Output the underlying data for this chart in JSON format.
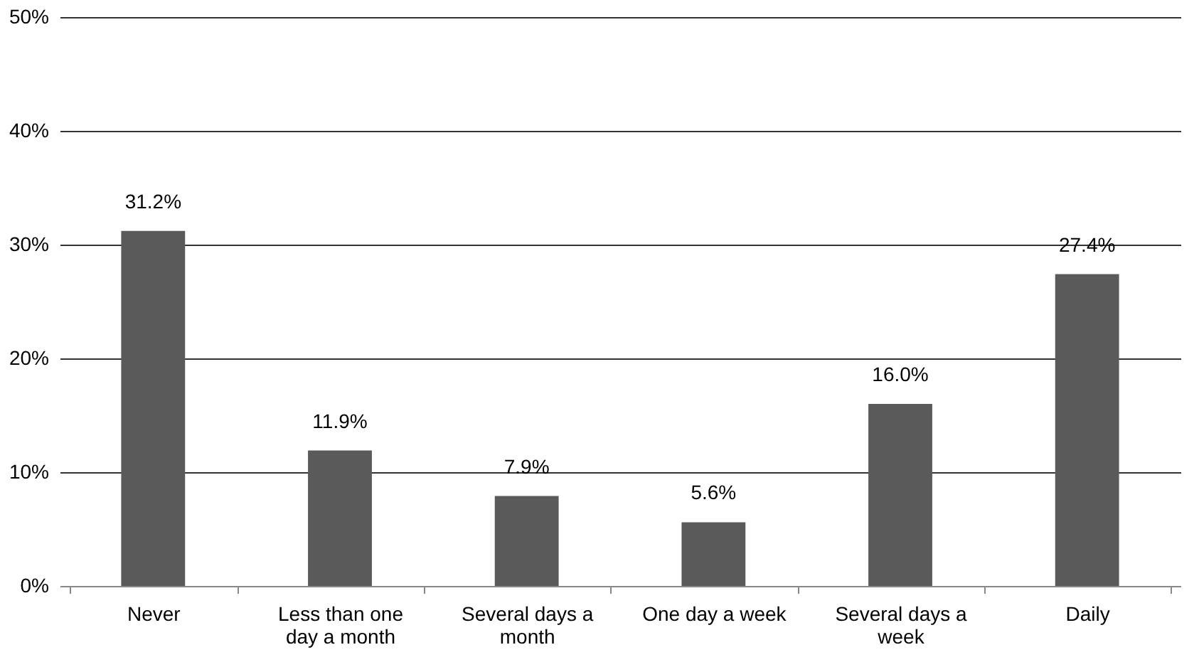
{
  "chart_data": {
    "type": "bar",
    "categories": [
      "Never",
      "Less than one day a month",
      "Several days a month",
      "One day a week",
      "Several days a week",
      "Daily"
    ],
    "values": [
      31.2,
      11.9,
      7.9,
      5.6,
      16.0,
      27.4
    ],
    "value_labels": [
      "31.2%",
      "11.9%",
      "7.9%",
      "5.6%",
      "16.0%",
      "27.4%"
    ],
    "color": "#5a5a5a",
    "ylim": [
      0,
      50
    ],
    "yticks": [
      {
        "value": 0,
        "label": "0%"
      },
      {
        "value": 10,
        "label": "10%"
      },
      {
        "value": 20,
        "label": "20%"
      },
      {
        "value": 30,
        "label": "30%"
      },
      {
        "value": 40,
        "label": "40%"
      },
      {
        "value": 50,
        "label": "50%"
      }
    ],
    "grid": "y"
  }
}
